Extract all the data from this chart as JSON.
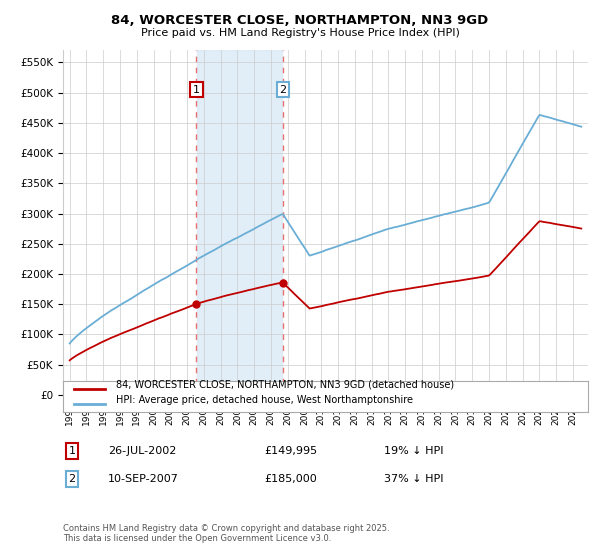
{
  "title": "84, WORCESTER CLOSE, NORTHAMPTON, NN3 9GD",
  "subtitle": "Price paid vs. HM Land Registry's House Price Index (HPI)",
  "ylim": [
    0,
    570000
  ],
  "hpi_color": "#6aaed6",
  "hpi_fill_color": "#d6e8f5",
  "price_color": "#c00000",
  "dashed_line_color": "#e87070",
  "sale1_x": 2002.558,
  "sale2_x": 2007.708,
  "sale1_price": 149995,
  "sale2_price": 185000,
  "sale1_date": "26-JUL-2002",
  "sale2_date": "10-SEP-2007",
  "sale1_hpi_label": "19% ↓ HPI",
  "sale2_hpi_label": "37% ↓ HPI",
  "legend_label1": "84, WORCESTER CLOSE, NORTHAMPTON, NN3 9GD (detached house)",
  "legend_label2": "HPI: Average price, detached house, West Northamptonshire",
  "footnote": "Contains HM Land Registry data © Crown copyright and database right 2025.\nThis data is licensed under the Open Government Licence v3.0.",
  "background_color": "#ffffff",
  "grid_color": "#cccccc",
  "box1_edge_color": "#c00000",
  "box2_edge_color": "#6aaed6"
}
